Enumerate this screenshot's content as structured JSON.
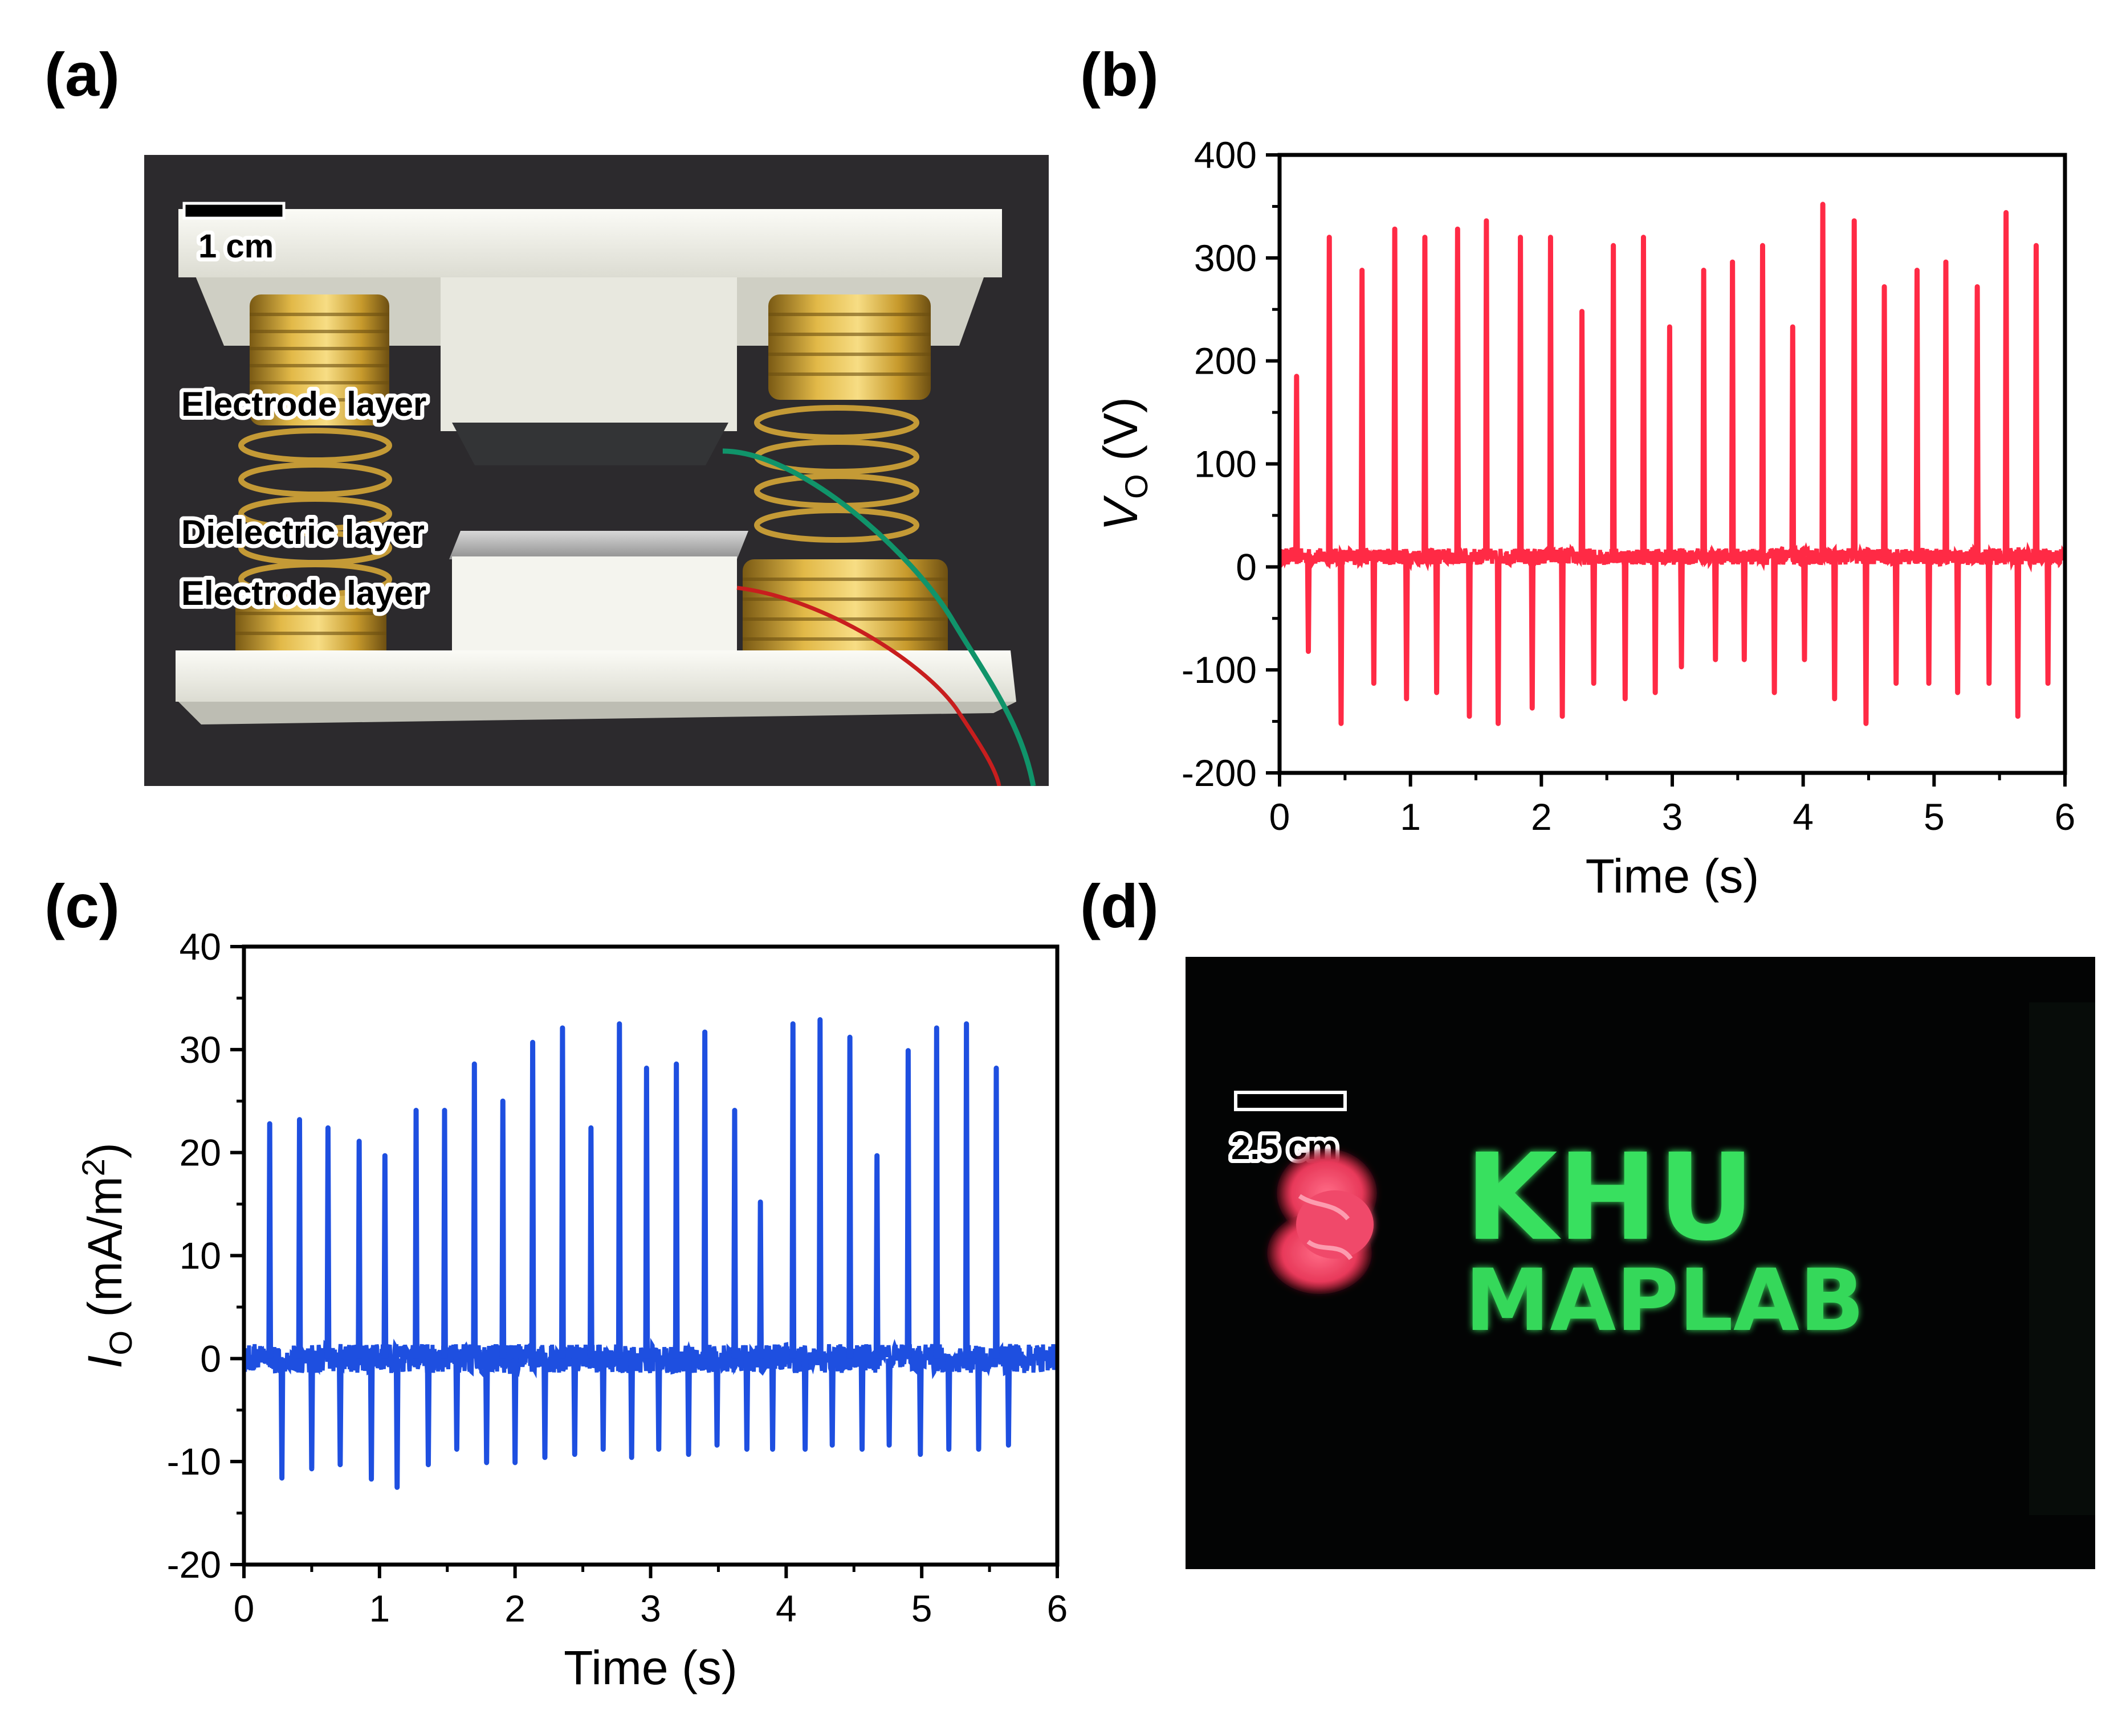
{
  "panels": {
    "a": "(a)",
    "b": "(b)",
    "c": "(c)",
    "d": "(d)"
  },
  "photo_a": {
    "scale_bar": "1 cm",
    "labels": [
      "Electrode layer",
      "Dielectric layer",
      "Electrode layer"
    ]
  },
  "photo_d": {
    "scale_bar": "2.5 cm",
    "text_line1": "KHU",
    "text_line2": "MAPLAB"
  },
  "colors": {
    "voltage_trace": "#ff2a45",
    "current_trace": "#1e4fe0"
  },
  "chart_data": [
    {
      "id": "b",
      "type": "line",
      "title": "",
      "xlabel": "Time (s)",
      "ylabel_symbol": "V",
      "ylabel_sub": "O",
      "ylabel_unit": " (V)",
      "xlim": [
        0,
        6
      ],
      "ylim": [
        -200,
        400
      ],
      "xticks": [
        0,
        1,
        2,
        3,
        4,
        5,
        6
      ],
      "yticks": [
        -200,
        -100,
        0,
        100,
        200,
        300,
        400
      ],
      "baseline": 10,
      "noise": 8,
      "spikes": [
        {
          "t": 0.13,
          "pos": 185,
          "neg": -82
        },
        {
          "t": 0.38,
          "pos": 320,
          "neg": -152
        },
        {
          "t": 0.63,
          "pos": 288,
          "neg": -113
        },
        {
          "t": 0.88,
          "pos": 328,
          "neg": -128
        },
        {
          "t": 1.11,
          "pos": 320,
          "neg": -122
        },
        {
          "t": 1.36,
          "pos": 328,
          "neg": -145
        },
        {
          "t": 1.58,
          "pos": 336,
          "neg": -152
        },
        {
          "t": 1.84,
          "pos": 320,
          "neg": -137
        },
        {
          "t": 2.07,
          "pos": 320,
          "neg": -145
        },
        {
          "t": 2.31,
          "pos": 248,
          "neg": -113
        },
        {
          "t": 2.55,
          "pos": 312,
          "neg": -128
        },
        {
          "t": 2.78,
          "pos": 320,
          "neg": -122
        },
        {
          "t": 2.98,
          "pos": 233,
          "neg": -97
        },
        {
          "t": 3.24,
          "pos": 288,
          "neg": -90
        },
        {
          "t": 3.46,
          "pos": 296,
          "neg": -90
        },
        {
          "t": 3.69,
          "pos": 312,
          "neg": -122
        },
        {
          "t": 3.92,
          "pos": 233,
          "neg": -90
        },
        {
          "t": 4.15,
          "pos": 352,
          "neg": -128
        },
        {
          "t": 4.39,
          "pos": 336,
          "neg": -152
        },
        {
          "t": 4.62,
          "pos": 272,
          "neg": -113
        },
        {
          "t": 4.87,
          "pos": 288,
          "neg": -113
        },
        {
          "t": 5.09,
          "pos": 296,
          "neg": -122
        },
        {
          "t": 5.33,
          "pos": 272,
          "neg": -113
        },
        {
          "t": 5.55,
          "pos": 344,
          "neg": -145
        },
        {
          "t": 5.78,
          "pos": 312,
          "neg": -113
        }
      ]
    },
    {
      "id": "c",
      "type": "line",
      "title": "",
      "xlabel": "Time (s)",
      "ylabel_symbol": "I",
      "ylabel_sub": "O",
      "ylabel_unit": " (mA/m",
      "ylabel_sup": "2",
      "ylabel_close": ")",
      "xlim": [
        0,
        6
      ],
      "ylim": [
        -20,
        40
      ],
      "xticks": [
        0,
        1,
        2,
        3,
        4,
        5,
        6
      ],
      "yticks": [
        -20,
        -10,
        0,
        10,
        20,
        30,
        40
      ],
      "baseline": 0,
      "noise": 1.4,
      "spikes": [
        {
          "t": 0.19,
          "pos": 22.8,
          "neg": -11.6
        },
        {
          "t": 0.41,
          "pos": 23.2,
          "neg": -10.7
        },
        {
          "t": 0.62,
          "pos": 22.4,
          "neg": -10.3
        },
        {
          "t": 0.85,
          "pos": 21.1,
          "neg": -11.7
        },
        {
          "t": 1.04,
          "pos": 19.7,
          "neg": -12.5
        },
        {
          "t": 1.27,
          "pos": 24.1,
          "neg": -10.3
        },
        {
          "t": 1.48,
          "pos": 24.1,
          "neg": -8.8
        },
        {
          "t": 1.7,
          "pos": 28.6,
          "neg": -10.1
        },
        {
          "t": 1.91,
          "pos": 25.0,
          "neg": -10.1
        },
        {
          "t": 2.13,
          "pos": 30.7,
          "neg": -9.6
        },
        {
          "t": 2.35,
          "pos": 32.1,
          "neg": -9.3
        },
        {
          "t": 2.56,
          "pos": 22.4,
          "neg": -8.8
        },
        {
          "t": 2.77,
          "pos": 32.5,
          "neg": -9.6
        },
        {
          "t": 2.97,
          "pos": 28.2,
          "neg": -8.8
        },
        {
          "t": 3.19,
          "pos": 28.6,
          "neg": -9.3
        },
        {
          "t": 3.4,
          "pos": 31.7,
          "neg": -8.4
        },
        {
          "t": 3.62,
          "pos": 24.1,
          "neg": -8.8
        },
        {
          "t": 3.81,
          "pos": 15.2,
          "neg": -8.8
        },
        {
          "t": 4.05,
          "pos": 32.5,
          "neg": -8.8
        },
        {
          "t": 4.25,
          "pos": 32.9,
          "neg": -8.4
        },
        {
          "t": 4.47,
          "pos": 31.2,
          "neg": -8.8
        },
        {
          "t": 4.67,
          "pos": 19.7,
          "neg": -8.4
        },
        {
          "t": 4.9,
          "pos": 29.9,
          "neg": -9.3
        },
        {
          "t": 5.11,
          "pos": 32.1,
          "neg": -8.8
        },
        {
          "t": 5.33,
          "pos": 32.5,
          "neg": -8.8
        },
        {
          "t": 5.55,
          "pos": 28.2,
          "neg": -8.4
        }
      ]
    }
  ]
}
